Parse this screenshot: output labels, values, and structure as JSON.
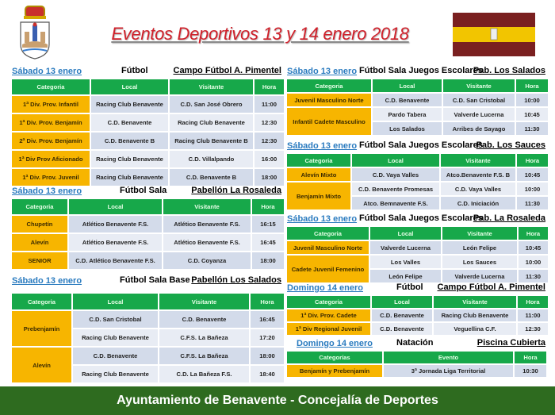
{
  "title": "Eventos Deportivos 13 y 14 enero 2018",
  "footer": "Ayuntamiento de Benavente - Concejalía de Deportes",
  "colors": {
    "header_green": "#17a84a",
    "category_orange": "#f7b500",
    "title_red": "#d0202a",
    "footer_green": "#2e6b1f",
    "date_blue": "#2a7bbf",
    "flag_maroon": "#7a2020",
    "flag_yellow": "#f2c500"
  },
  "sections": [
    {
      "date": "Sábado 13 enero",
      "sport": "Fútbol",
      "venue": "Campo Fútbol A. Pimentel",
      "headers": [
        "Categoria",
        "Local",
        "Visitante",
        "Hora"
      ],
      "groups": [
        {
          "category": "1ª Div. Prov. Infantil",
          "matches": [
            {
              "local": "Racing Club Benavente",
              "visitante": "C.D. San José Obrero",
              "hora": "11:00"
            }
          ]
        },
        {
          "category": "1ª Div. Prov. Benjamín",
          "matches": [
            {
              "local": "C.D. Benavente",
              "visitante": "Racing Club Benavente",
              "hora": "12:30"
            }
          ]
        },
        {
          "category": "2ª Div. Prov. Benjamín",
          "matches": [
            {
              "local": "C.D. Benavente B",
              "visitante": "Racing Club Benavente B",
              "hora": "12:30"
            }
          ]
        },
        {
          "category": "1ª Div Prov Aficionado",
          "matches": [
            {
              "local": "Racing Club Benavente",
              "visitante": "C.D. Villalpando",
              "hora": "16:00"
            }
          ]
        },
        {
          "category": "1ª Div. Prov. Juvenil",
          "matches": [
            {
              "local": "Racing Club Benavente",
              "visitante": "C.D. Benavente B",
              "hora": "18:00"
            }
          ]
        }
      ]
    },
    {
      "date": "Sábado 13 enero",
      "sport": "Fútbol Sala",
      "venue": "Pabellón La Rosaleda",
      "headers": [
        "Categoria",
        "Local",
        "Visitante",
        "Hora"
      ],
      "groups": [
        {
          "category": "Chupetín",
          "matches": [
            {
              "local": "Atlético Benavente F.S.",
              "visitante": "Atlético Benavente F.S.",
              "hora": "16:15"
            }
          ]
        },
        {
          "category": "Alevín",
          "matches": [
            {
              "local": "Atlético Benavente F.S.",
              "visitante": "Atlético Benavente F.S.",
              "hora": "16:45"
            }
          ]
        },
        {
          "category": "SENIOR",
          "matches": [
            {
              "local": "C.D. Atlético Benavente F.S.",
              "visitante": "C.D. Coyanza",
              "hora": "18:00"
            }
          ]
        }
      ]
    },
    {
      "date": "Sábado 13 enero",
      "sport": "Fútbol Sala Base",
      "venue": "Pabellón Los Salados",
      "headers": [
        "Categoria",
        "Local",
        "Visitante",
        "Hora"
      ],
      "groups": [
        {
          "category": "Prebenjamín",
          "matches": [
            {
              "local": "C.D. San Cristobal",
              "visitante": "C.D. Benavente",
              "hora": "16:45"
            },
            {
              "local": "Racing Club Benavente",
              "visitante": "C.F.S. La Bañeza",
              "hora": "17:20"
            }
          ]
        },
        {
          "category": "Alevín",
          "matches": [
            {
              "local": "C.D. Benavente",
              "visitante": "C.F.S. La Bañeza",
              "hora": "18:00"
            },
            {
              "local": "Racing Club Benavente",
              "visitante": "C.D. La Bañeza F.S.",
              "hora": "18:40"
            }
          ]
        }
      ]
    },
    {
      "date": "Sábado 13 enero",
      "sport": "Fútbol Sala Juegos Escolares",
      "venue": "Pab. Los Salados",
      "headers": [
        "Categoria",
        "Local",
        "Visitante",
        "Hora"
      ],
      "groups": [
        {
          "category": "Juvenil Masculino Norte",
          "matches": [
            {
              "local": "C.D. Benavente",
              "visitante": "C.D. San Cristobal",
              "hora": "10:00"
            }
          ]
        },
        {
          "category": "Infantil Cadete Masculino",
          "matches": [
            {
              "local": "Pardo Tabera",
              "visitante": "Valverde Lucerna",
              "hora": "10:45"
            },
            {
              "local": "Los Salados",
              "visitante": "Arribes de Sayago",
              "hora": "11:30"
            }
          ]
        }
      ]
    },
    {
      "date": "Sábado 13 enero",
      "sport": "Fútbol Sala Juegos Escolares",
      "venue": "Pab. Los Sauces",
      "headers": [
        "Categoria",
        "Local",
        "Visitante",
        "Hora"
      ],
      "groups": [
        {
          "category": "Alevín Mixto",
          "matches": [
            {
              "local": "C.D. Vaya Valles",
              "visitante": "Atco.Benavente F.S. B",
              "hora": "10:45"
            }
          ]
        },
        {
          "category": "Benjamín Mixto",
          "matches": [
            {
              "local": "C.D. Benavente Promesas",
              "visitante": "C.D. Vaya Valles",
              "hora": "10:00"
            },
            {
              "local": "Atco. Bemnavente F.S.",
              "visitante": "C.D. Iniciación",
              "hora": "11:30"
            }
          ]
        }
      ]
    },
    {
      "date": "Sábado 13 enero",
      "sport": "Fútbol Sala Juegos Escolares",
      "venue": "Pab. La Rosaleda",
      "headers": [
        "Categoria",
        "Local",
        "Visitante",
        "Hora"
      ],
      "groups": [
        {
          "category": "Juvenil Masculino Norte",
          "matches": [
            {
              "local": "Valverde Lucerna",
              "visitante": "León Felipe",
              "hora": "10:45"
            }
          ]
        },
        {
          "category": "Cadete Juvenil Femenino",
          "matches": [
            {
              "local": "Los Valles",
              "visitante": "Los Sauces",
              "hora": "10:00"
            },
            {
              "local": "León Felipe",
              "visitante": "Valverde Lucerna",
              "hora": "11:30"
            }
          ]
        }
      ]
    },
    {
      "date": "Domingo 14 enero",
      "sport": "Fútbol",
      "venue": "Campo Fútbol A. Pimentel",
      "headers": [
        "Categoria",
        "Local",
        "Visitante",
        "Hora"
      ],
      "groups": [
        {
          "category": "1ª Div. Prov. Cadete",
          "matches": [
            {
              "local": "C.D. Benavente",
              "visitante": "Racing Club Benavente",
              "hora": "11:00"
            }
          ]
        },
        {
          "category": "1ª Div Regional Juvenil",
          "matches": [
            {
              "local": "C.D. Benavente",
              "visitante": "Veguellina C.F.",
              "hora": "12:30"
            }
          ]
        }
      ]
    },
    {
      "date": "Domingo 14 enero",
      "sport": "Natación",
      "venue": "Piscina Cubierta",
      "headers": [
        "Categorías",
        "Evento",
        "Hora"
      ],
      "groups": [
        {
          "category": "Benjamín y Prebenjamín",
          "matches": [
            {
              "evento": "3ª Jornada Liga Territorial",
              "hora": "10:30"
            }
          ]
        }
      ]
    }
  ]
}
